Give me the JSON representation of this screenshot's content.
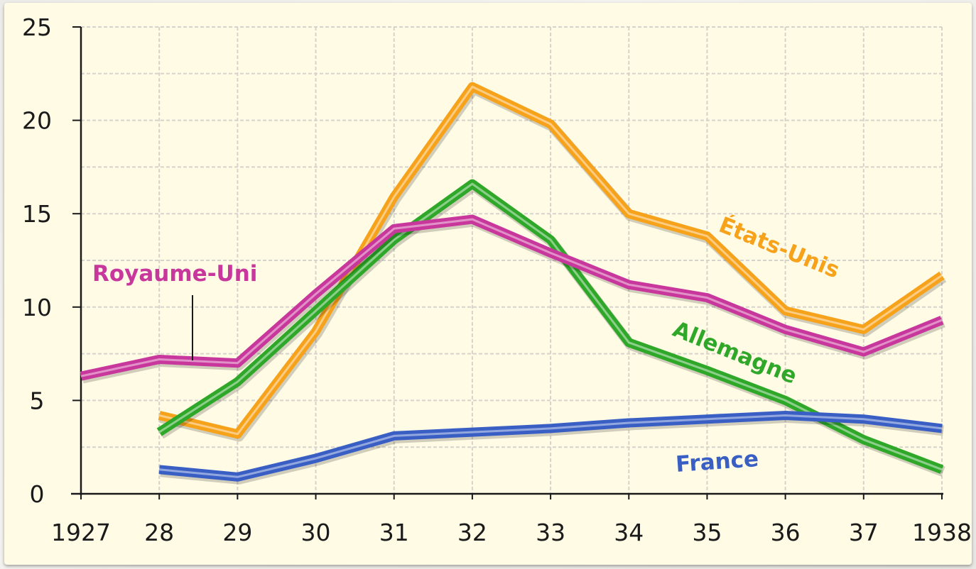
{
  "chart_data": {
    "type": "line",
    "title": "",
    "xlabel": "",
    "ylabel": "",
    "x_ticks": [
      "1927",
      "28",
      "29",
      "30",
      "31",
      "32",
      "33",
      "34",
      "35",
      "36",
      "37",
      "1938"
    ],
    "y_ticks": [
      "0",
      "5",
      "10",
      "15",
      "20",
      "25"
    ],
    "xlim": [
      1927,
      1938
    ],
    "ylim": [
      0,
      25
    ],
    "grid": true,
    "series": [
      {
        "name": "États-Unis",
        "color": "#f7a21b",
        "points": [
          [
            1928,
            4.2
          ],
          [
            1929,
            3.2
          ],
          [
            1930,
            8.7
          ],
          [
            1931,
            15.9
          ],
          [
            1932,
            21.8
          ],
          [
            1933,
            19.8
          ],
          [
            1934,
            15.0
          ],
          [
            1935,
            13.8
          ],
          [
            1936,
            9.8
          ],
          [
            1937,
            8.8
          ],
          [
            1938,
            11.7
          ]
        ]
      },
      {
        "name": "Allemagne",
        "color": "#2fa82a",
        "points": [
          [
            1928,
            3.3
          ],
          [
            1929,
            6.0
          ],
          [
            1930,
            9.8
          ],
          [
            1931,
            13.6
          ],
          [
            1932,
            16.6
          ],
          [
            1933,
            13.6
          ],
          [
            1934,
            8.1
          ],
          [
            1935,
            6.6
          ],
          [
            1936,
            5.0
          ],
          [
            1937,
            2.9
          ],
          [
            1938,
            1.3
          ]
        ]
      },
      {
        "name": "Royaume-Uni",
        "color": "#c8389c",
        "points": [
          [
            1927,
            6.3
          ],
          [
            1928,
            7.2
          ],
          [
            1929,
            7.0
          ],
          [
            1930,
            10.7
          ],
          [
            1931,
            14.2
          ],
          [
            1932,
            14.7
          ],
          [
            1933,
            12.9
          ],
          [
            1934,
            11.2
          ],
          [
            1935,
            10.5
          ],
          [
            1936,
            8.8
          ],
          [
            1937,
            7.6
          ],
          [
            1938,
            9.3
          ]
        ]
      },
      {
        "name": "France",
        "color": "#3a5fc4",
        "points": [
          [
            1928,
            1.3
          ],
          [
            1929,
            0.9
          ],
          [
            1930,
            1.9
          ],
          [
            1931,
            3.1
          ],
          [
            1932,
            3.3
          ],
          [
            1933,
            3.5
          ],
          [
            1934,
            3.8
          ],
          [
            1935,
            4.0
          ],
          [
            1936,
            4.2
          ],
          [
            1937,
            4.0
          ],
          [
            1938,
            3.5
          ]
        ]
      }
    ],
    "annotations": [
      {
        "text": "Royaume-Uni",
        "color": "#c8389c"
      },
      {
        "text": "États-Unis",
        "color": "#f7a21b"
      },
      {
        "text": "Allemagne",
        "color": "#2fa82a"
      },
      {
        "text": "France",
        "color": "#3a5fc4"
      }
    ]
  }
}
